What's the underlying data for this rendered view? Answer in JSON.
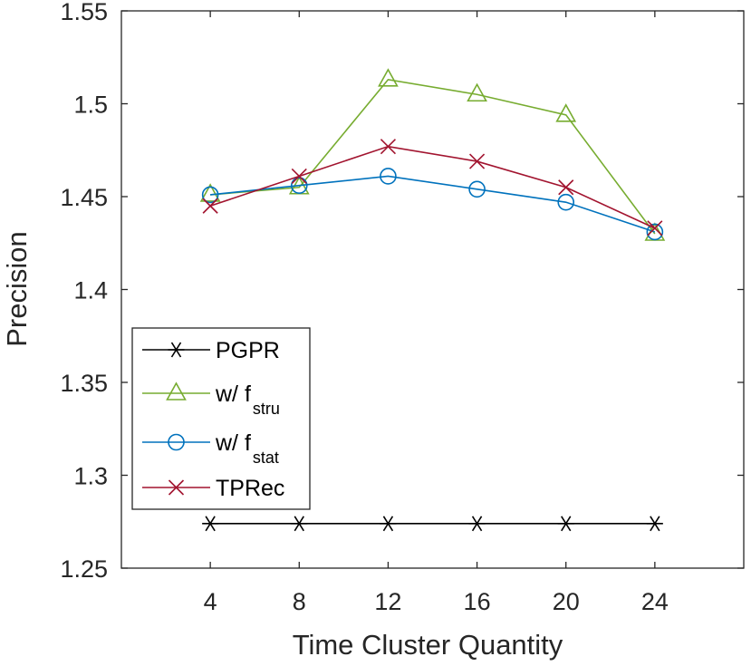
{
  "chart_data": {
    "type": "line",
    "title": "",
    "xlabel": "Time Cluster Quantity",
    "ylabel": "Precision",
    "x": [
      4,
      8,
      12,
      16,
      20,
      24
    ],
    "xlim": [
      0,
      28
    ],
    "ylim": [
      1.25,
      1.55
    ],
    "xticks": [
      4,
      8,
      12,
      16,
      20,
      24
    ],
    "yticks": [
      1.25,
      1.3,
      1.35,
      1.4,
      1.45,
      1.5,
      1.55
    ],
    "grid": false,
    "legend_position": "lower-left",
    "series": [
      {
        "name": "PGPR",
        "label_main": "PGPR",
        "label_sub": "",
        "marker": "asterisk",
        "color": "#000000",
        "values": [
          1.274,
          1.274,
          1.274,
          1.274,
          1.274,
          1.274
        ]
      },
      {
        "name": "w/ f_stru",
        "label_main": "w/ f",
        "label_sub": "stru",
        "marker": "triangle",
        "color": "#77AC30",
        "values": [
          1.451,
          1.455,
          1.513,
          1.505,
          1.494,
          1.43
        ]
      },
      {
        "name": "w/ f_stat",
        "label_main": "w/ f",
        "label_sub": "stat",
        "marker": "circle",
        "color": "#0072BD",
        "values": [
          1.451,
          1.456,
          1.461,
          1.454,
          1.447,
          1.431
        ]
      },
      {
        "name": "TPRec",
        "label_main": "TPRec",
        "label_sub": "",
        "marker": "x",
        "color": "#A2142F",
        "values": [
          1.445,
          1.461,
          1.477,
          1.469,
          1.455,
          1.433
        ]
      }
    ]
  }
}
